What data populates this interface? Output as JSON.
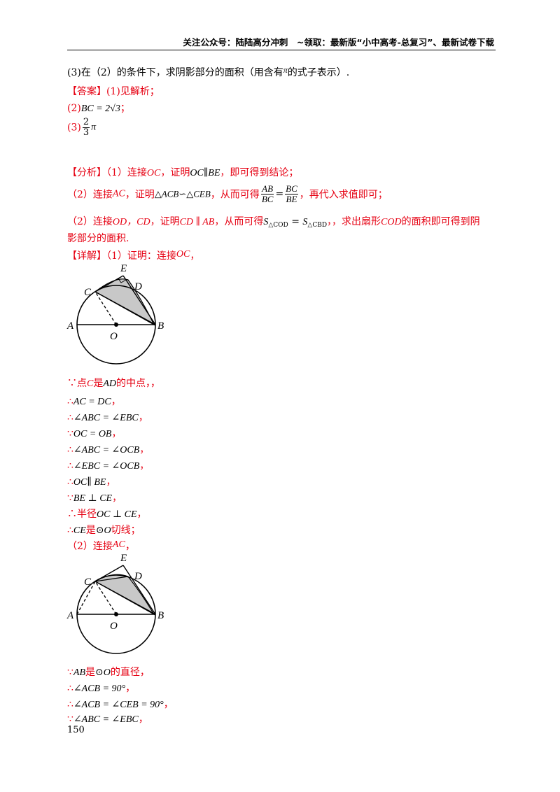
{
  "header": {
    "text": "关注公众号：陆陆高分冲刺　~领取：最新版“小中高考-总复习”、最新试卷下载"
  },
  "question3": {
    "prefix": "(3)在（2）的条件下，求阴影部分的面积（用含有",
    "pi": "π",
    "suffix": "的式子表示）."
  },
  "answer": {
    "label": "【答案】",
    "a1": "(1)见解析；",
    "a2_prefix": "(2)",
    "a2_math": "BC = 2√3",
    "a2_suffix": "；",
    "a3_prefix": "(3)",
    "a3_num": "2",
    "a3_den": "3",
    "a3_pi": "π"
  },
  "analysis": {
    "label": "【分析】",
    "l1_a": "（1）连接",
    "l1_oc": "OC",
    "l1_b": "，证明",
    "l1_par": "OC∥BE",
    "l1_c": "，即可得到结论；",
    "l2_a": "（2）连接",
    "l2_ac": "AC",
    "l2_b": "，证明",
    "l2_sim": "△ACB∽△CEB",
    "l2_c": "，从而可得",
    "l2_f1n": "AB",
    "l2_f1d": "BC",
    "l2_eq": "=",
    "l2_f2n": "BC",
    "l2_f2d": "BE",
    "l2_d": "，再代入求值即可；",
    "l3_a": "（2）连接",
    "l3_od": "OD，CD",
    "l3_b": "，证明",
    "l3_par": "CD ∥ AB",
    "l3_c": "，从而可得",
    "l3_s1": "S",
    "l3_s1sub": "△COD",
    "l3_eq": " = ",
    "l3_s2": "S",
    "l3_s2sub": "△CBD",
    "l3_d": "，，求出扇形",
    "l3_cod": "COD",
    "l3_e": "的面积即可得到阴",
    "l4": "影部分的面积."
  },
  "detail": {
    "label": "【详解】",
    "intro_a": "（1）证明：连接",
    "intro_oc": "OC",
    "intro_b": "，",
    "s1_a": "∵点",
    "s1_c": "C",
    "s1_b": "是",
    "s1_arc": "AD",
    "s1_c2": "的中点，，",
    "s2_t": "∴",
    "s2_m": "AC = DC",
    "s2_e": "，",
    "s3_t": "∴",
    "s3_m": "∠ABC = ∠EBC",
    "s3_e": "，",
    "s4_t": "∵",
    "s4_m": "OC = OB",
    "s4_e": "，",
    "s5_t": "∴",
    "s5_m": "∠ABC = ∠OCB",
    "s5_e": "，",
    "s6_t": "∴",
    "s6_m": "∠EBC = ∠OCB",
    "s6_e": "，",
    "s7_t": "∴",
    "s7_m": "OC∥ BE",
    "s7_e": "，",
    "s8_t": "∵",
    "s8_m": "BE ⊥ CE",
    "s8_e": "，",
    "s9_t": "∴半径",
    "s9_m": "OC ⊥ CE",
    "s9_e": "，",
    "s10_t": "∴",
    "s10_m": "CE",
    "s10_b": "是",
    "s10_o": "⊙O",
    "s10_e": "切线；",
    "p2_a": "（2）连接",
    "p2_ac": "AC",
    "p2_b": "，",
    "t1_t": "∵",
    "t1_m": "AB",
    "t1_b": "是",
    "t1_o": "⊙O",
    "t1_e": "的直径，",
    "t2_t": "∴",
    "t2_m": "∠ACB = 90°",
    "t2_e": "，",
    "t3_t": "∴",
    "t3_m": "∠ACB = ∠CEB = 90°",
    "t3_e": "，",
    "t4_t": "∵",
    "t4_m": "∠ABC = ∠EBC",
    "t4_e": "，"
  },
  "figure1": {
    "labels": [
      "E",
      "C",
      "D",
      "A",
      "O",
      "B"
    ]
  },
  "figure2": {
    "labels": [
      "E",
      "C",
      "D",
      "A",
      "O",
      "B"
    ]
  },
  "colors": {
    "accent_red": "#e60012",
    "shade": "#c8c8c8"
  },
  "page_number": "150"
}
